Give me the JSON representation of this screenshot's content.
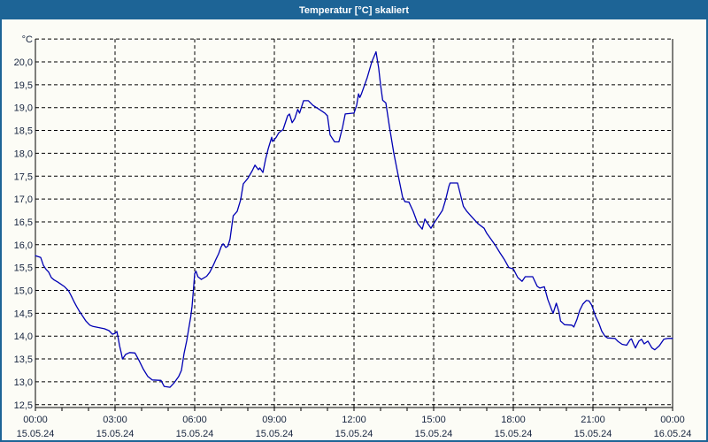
{
  "window": {
    "title": "Temperatur [°C] skaliert"
  },
  "colors": {
    "titlebar_bg": "#1d6496",
    "titlebar_text": "#ffffff",
    "window_bg": "#fcfcf6",
    "window_border": "#1d6496",
    "line": "#0000b4",
    "axis": "#000000",
    "grid": "#000000",
    "label_text": "#16243e"
  },
  "chart_data": {
    "type": "line",
    "title": "Temperatur [°C] skaliert",
    "series_name": "Temperatur",
    "legend": "none",
    "grid_style": "dashed",
    "x_axis": {
      "unit": "time",
      "range_hours": [
        0,
        24
      ],
      "minor_tick_every_hours": 1,
      "major_ticks": [
        {
          "hour": 0,
          "time": "00:00",
          "date": "15.05.24"
        },
        {
          "hour": 3,
          "time": "03:00",
          "date": "15.05.24"
        },
        {
          "hour": 6,
          "time": "06:00",
          "date": "15.05.24"
        },
        {
          "hour": 9,
          "time": "09:00",
          "date": "15.05.24"
        },
        {
          "hour": 12,
          "time": "12:00",
          "date": "15.05.24"
        },
        {
          "hour": 15,
          "time": "15:00",
          "date": "15.05.24"
        },
        {
          "hour": 18,
          "time": "18:00",
          "date": "15.05.24"
        },
        {
          "hour": 21,
          "time": "21:00",
          "date": "15.05.24"
        },
        {
          "hour": 24,
          "time": "00:00",
          "date": "16.05.24"
        }
      ]
    },
    "y_axis": {
      "unit_label": "°C",
      "grid_min": 12.5,
      "grid_max": 20.5,
      "grid_step": 0.5,
      "ylim": [
        12.4,
        20.6
      ],
      "ticks": [
        {
          "value": 20.0,
          "label": "20,0"
        },
        {
          "value": 19.5,
          "label": "19,5"
        },
        {
          "value": 19.0,
          "label": "19,0"
        },
        {
          "value": 18.5,
          "label": "18,5"
        },
        {
          "value": 18.0,
          "label": "18,0"
        },
        {
          "value": 17.5,
          "label": "17,5"
        },
        {
          "value": 17.0,
          "label": "17,0"
        },
        {
          "value": 16.5,
          "label": "16,5"
        },
        {
          "value": 16.0,
          "label": "16,0"
        },
        {
          "value": 15.5,
          "label": "15,5"
        },
        {
          "value": 15.0,
          "label": "15,0"
        },
        {
          "value": 14.5,
          "label": "14,5"
        },
        {
          "value": 14.0,
          "label": "14,0"
        },
        {
          "value": 13.5,
          "label": "13,5"
        },
        {
          "value": 13.0,
          "label": "13,0"
        },
        {
          "value": 12.5,
          "label": "12,5"
        }
      ]
    },
    "points_time_h_temp_c": [
      [
        0.0,
        15.76
      ],
      [
        0.2,
        15.72
      ],
      [
        0.3,
        15.55
      ],
      [
        0.4,
        15.46
      ],
      [
        0.5,
        15.4
      ],
      [
        0.6,
        15.28
      ],
      [
        0.7,
        15.23
      ],
      [
        0.85,
        15.18
      ],
      [
        1.1,
        15.08
      ],
      [
        1.25,
        14.99
      ],
      [
        1.35,
        14.88
      ],
      [
        1.45,
        14.76
      ],
      [
        1.55,
        14.65
      ],
      [
        1.67,
        14.53
      ],
      [
        1.8,
        14.42
      ],
      [
        1.9,
        14.33
      ],
      [
        2.05,
        14.24
      ],
      [
        2.17,
        14.21
      ],
      [
        2.6,
        14.16
      ],
      [
        2.77,
        14.12
      ],
      [
        2.9,
        14.04
      ],
      [
        3.0,
        14.06
      ],
      [
        3.07,
        14.1
      ],
      [
        3.12,
        13.95
      ],
      [
        3.17,
        13.79
      ],
      [
        3.23,
        13.64
      ],
      [
        3.28,
        13.5
      ],
      [
        3.4,
        13.6
      ],
      [
        3.55,
        13.64
      ],
      [
        3.75,
        13.63
      ],
      [
        3.9,
        13.47
      ],
      [
        4.07,
        13.27
      ],
      [
        4.23,
        13.12
      ],
      [
        4.4,
        13.04
      ],
      [
        4.73,
        13.03
      ],
      [
        4.85,
        12.9
      ],
      [
        5.07,
        12.88
      ],
      [
        5.23,
        12.98
      ],
      [
        5.4,
        13.12
      ],
      [
        5.5,
        13.25
      ],
      [
        5.6,
        13.62
      ],
      [
        5.7,
        13.9
      ],
      [
        5.78,
        14.18
      ],
      [
        5.85,
        14.42
      ],
      [
        5.9,
        14.65
      ],
      [
        5.95,
        15.0
      ],
      [
        6.0,
        15.37
      ],
      [
        6.05,
        15.42
      ],
      [
        6.12,
        15.3
      ],
      [
        6.25,
        15.24
      ],
      [
        6.45,
        15.31
      ],
      [
        6.57,
        15.4
      ],
      [
        6.7,
        15.55
      ],
      [
        6.8,
        15.68
      ],
      [
        6.9,
        15.8
      ],
      [
        7.0,
        15.96
      ],
      [
        7.07,
        16.02
      ],
      [
        7.17,
        15.94
      ],
      [
        7.25,
        15.97
      ],
      [
        7.33,
        16.12
      ],
      [
        7.45,
        16.63
      ],
      [
        7.6,
        16.73
      ],
      [
        7.73,
        16.98
      ],
      [
        7.83,
        17.33
      ],
      [
        8.0,
        17.45
      ],
      [
        8.17,
        17.62
      ],
      [
        8.27,
        17.74
      ],
      [
        8.4,
        17.64
      ],
      [
        8.45,
        17.68
      ],
      [
        8.57,
        17.58
      ],
      [
        8.67,
        17.87
      ],
      [
        8.77,
        18.1
      ],
      [
        8.9,
        18.35
      ],
      [
        8.93,
        18.26
      ],
      [
        9.0,
        18.3
      ],
      [
        9.07,
        18.35
      ],
      [
        9.17,
        18.45
      ],
      [
        9.33,
        18.52
      ],
      [
        9.5,
        18.82
      ],
      [
        9.57,
        18.86
      ],
      [
        9.67,
        18.67
      ],
      [
        9.77,
        18.76
      ],
      [
        9.88,
        18.96
      ],
      [
        9.95,
        18.88
      ],
      [
        10.1,
        19.15
      ],
      [
        10.28,
        19.15
      ],
      [
        10.45,
        19.05
      ],
      [
        10.67,
        18.97
      ],
      [
        10.9,
        18.88
      ],
      [
        11.0,
        18.82
      ],
      [
        11.1,
        18.4
      ],
      [
        11.27,
        18.25
      ],
      [
        11.43,
        18.25
      ],
      [
        11.57,
        18.57
      ],
      [
        11.67,
        18.86
      ],
      [
        12.0,
        18.88
      ],
      [
        12.1,
        19.05
      ],
      [
        12.17,
        19.3
      ],
      [
        12.22,
        19.22
      ],
      [
        12.28,
        19.3
      ],
      [
        12.5,
        19.66
      ],
      [
        12.67,
        20.0
      ],
      [
        12.83,
        20.22
      ],
      [
        12.93,
        19.86
      ],
      [
        13.0,
        19.5
      ],
      [
        13.08,
        19.16
      ],
      [
        13.2,
        19.1
      ],
      [
        13.33,
        18.6
      ],
      [
        13.5,
        18.0
      ],
      [
        13.67,
        17.5
      ],
      [
        13.83,
        17.04
      ],
      [
        13.92,
        16.94
      ],
      [
        14.07,
        16.93
      ],
      [
        14.23,
        16.73
      ],
      [
        14.4,
        16.46
      ],
      [
        14.57,
        16.34
      ],
      [
        14.67,
        16.56
      ],
      [
        14.78,
        16.46
      ],
      [
        14.9,
        16.36
      ],
      [
        15.0,
        16.46
      ],
      [
        15.33,
        16.75
      ],
      [
        15.45,
        16.98
      ],
      [
        15.57,
        17.27
      ],
      [
        15.62,
        17.35
      ],
      [
        15.9,
        17.35
      ],
      [
        16.0,
        17.12
      ],
      [
        16.12,
        16.84
      ],
      [
        16.25,
        16.73
      ],
      [
        16.45,
        16.6
      ],
      [
        16.67,
        16.46
      ],
      [
        16.9,
        16.36
      ],
      [
        17.0,
        16.25
      ],
      [
        17.33,
        15.98
      ],
      [
        17.5,
        15.82
      ],
      [
        17.67,
        15.67
      ],
      [
        17.83,
        15.5
      ],
      [
        18.0,
        15.47
      ],
      [
        18.17,
        15.28
      ],
      [
        18.33,
        15.2
      ],
      [
        18.45,
        15.3
      ],
      [
        18.73,
        15.3
      ],
      [
        18.9,
        15.09
      ],
      [
        19.0,
        15.05
      ],
      [
        19.17,
        15.08
      ],
      [
        19.3,
        14.8
      ],
      [
        19.43,
        14.6
      ],
      [
        19.5,
        14.5
      ],
      [
        19.62,
        14.72
      ],
      [
        19.72,
        14.53
      ],
      [
        19.78,
        14.33
      ],
      [
        19.93,
        14.25
      ],
      [
        20.2,
        14.24
      ],
      [
        20.28,
        14.2
      ],
      [
        20.4,
        14.37
      ],
      [
        20.5,
        14.56
      ],
      [
        20.62,
        14.7
      ],
      [
        20.75,
        14.78
      ],
      [
        20.85,
        14.77
      ],
      [
        20.95,
        14.68
      ],
      [
        21.0,
        14.6
      ],
      [
        21.1,
        14.43
      ],
      [
        21.23,
        14.27
      ],
      [
        21.33,
        14.11
      ],
      [
        21.45,
        14.0
      ],
      [
        21.55,
        13.96
      ],
      [
        21.83,
        13.95
      ],
      [
        21.95,
        13.88
      ],
      [
        22.1,
        13.82
      ],
      [
        22.27,
        13.8
      ],
      [
        22.4,
        13.92
      ],
      [
        22.45,
        13.94
      ],
      [
        22.52,
        13.84
      ],
      [
        22.6,
        13.74
      ],
      [
        22.73,
        13.89
      ],
      [
        22.83,
        13.93
      ],
      [
        22.93,
        13.83
      ],
      [
        23.07,
        13.89
      ],
      [
        23.22,
        13.74
      ],
      [
        23.33,
        13.7
      ],
      [
        23.5,
        13.79
      ],
      [
        23.67,
        13.93
      ],
      [
        23.83,
        13.95
      ],
      [
        24.0,
        13.95
      ]
    ]
  }
}
